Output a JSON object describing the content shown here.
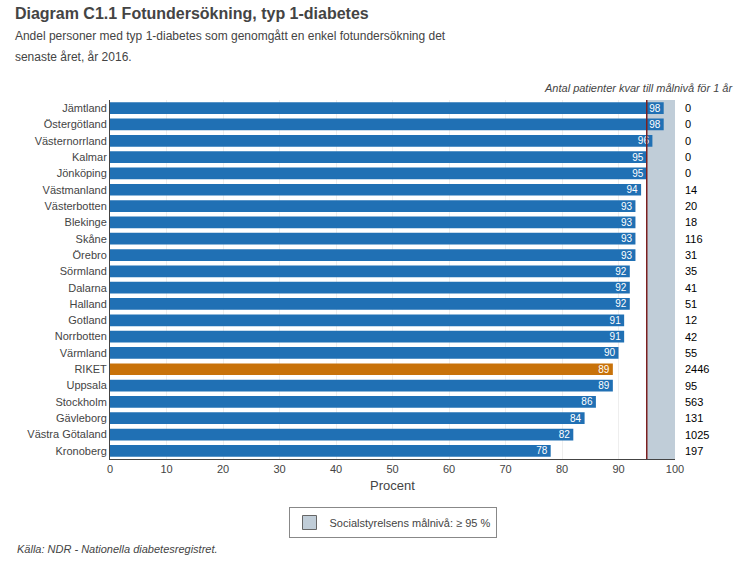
{
  "chart_data": {
    "type": "bar",
    "orientation": "horizontal",
    "title": "Diagram C1.1 Fotundersökning, typ 1-diabetes",
    "subtitle": "Andel personer med typ 1-diabetes som genomgått en enkel fotundersökning det\nsenaste året, år 2016.",
    "xlabel": "Procent",
    "footer": "Källa: NDR - Nationella diabetesregistret.",
    "right_label": "Antal patienter kvar till målnivå för 1 år",
    "categories": [
      "Jämtland",
      "Östergötland",
      "Västernorrland",
      "Kalmar",
      "Jönköping",
      "Västmanland",
      "Västerbotten",
      "Blekinge",
      "Skåne",
      "Örebro",
      "Sörmland",
      "Dalarna",
      "Halland",
      "Gotland",
      "Norrbotten",
      "Värmland",
      "RIKET",
      "Uppsala",
      "Stockholm",
      "Gävleborg",
      "Västra Götaland",
      "Kronoberg"
    ],
    "values": [
      98,
      98,
      96,
      95,
      95,
      94,
      93,
      93,
      93,
      93,
      92,
      92,
      92,
      91,
      91,
      90,
      89,
      89,
      86,
      84,
      82,
      78
    ],
    "colors": [
      "#2070B4",
      "#2070B4",
      "#2070B4",
      "#2070B4",
      "#2070B4",
      "#2070B4",
      "#2070B4",
      "#2070B4",
      "#2070B4",
      "#2070B4",
      "#2070B4",
      "#2070B4",
      "#2070B4",
      "#2070B4",
      "#2070B4",
      "#2070B4",
      "#C8720A",
      "#2070B4",
      "#2070B4",
      "#2070B4",
      "#2070B4",
      "#2070B4"
    ],
    "data_labels": true,
    "patients": [
      0,
      0,
      0,
      0,
      0,
      14,
      20,
      18,
      116,
      31,
      35,
      41,
      51,
      12,
      42,
      55,
      2446,
      95,
      563,
      131,
      1025,
      197
    ],
    "target_line": {
      "value": 95,
      "color": "#7B2020"
    },
    "target_zone": {
      "start": 95,
      "end": 100,
      "color": "#C0CDD8",
      "name": "Socialstyrelsens målnivå: ≥ 95 %"
    },
    "xlim": [
      0,
      100
    ],
    "xticks": [
      0,
      10,
      20,
      30,
      40,
      50,
      60,
      70,
      80,
      90,
      100
    ],
    "grid": true,
    "legend": "bottom"
  }
}
